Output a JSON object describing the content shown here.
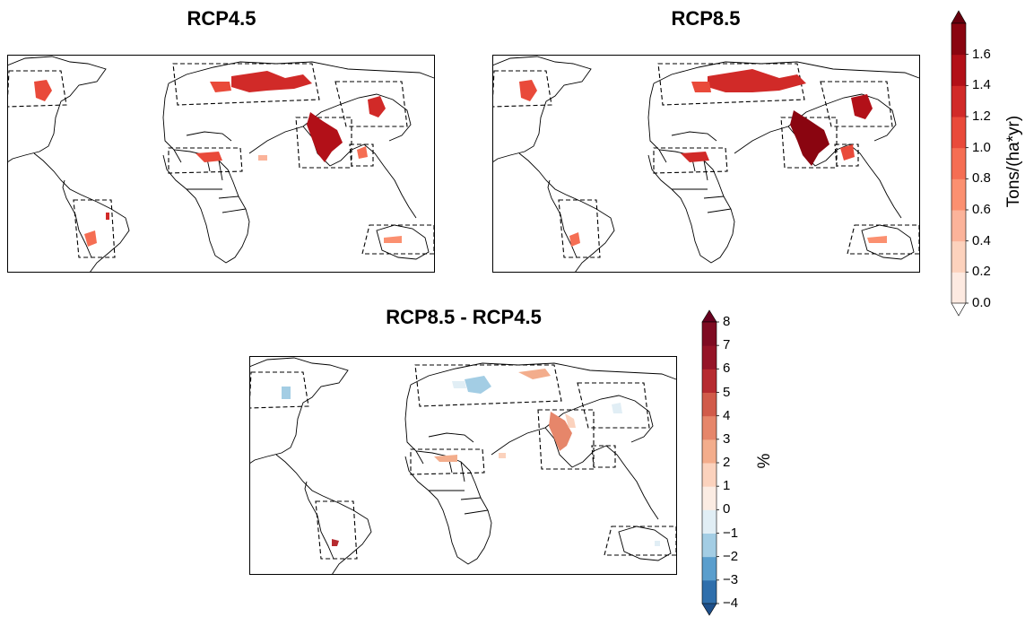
{
  "panels": {
    "rcp45": {
      "title": "RCP4.5"
    },
    "rcp85": {
      "title": "RCP8.5"
    },
    "diff": {
      "title": "RCP8.5 - RCP4.5"
    }
  },
  "colorbar_yield": {
    "label": "Tons/(ha*yr)",
    "ticks": [
      "0.0",
      "0.2",
      "0.4",
      "0.6",
      "0.8",
      "1.0",
      "1.2",
      "1.4",
      "1.6"
    ],
    "colors": [
      "#fdeae1",
      "#fcd2bd",
      "#fbb39a",
      "#fb9070",
      "#f56e53",
      "#e94a3a",
      "#d12a28",
      "#b21018",
      "#8a0510"
    ],
    "extend": "both",
    "extend_low_color": "#ffffff",
    "extend_high_color": "#67000d"
  },
  "colorbar_diff": {
    "label": "%",
    "ticks": [
      "−4",
      "−3",
      "−2",
      "−1",
      "0",
      "1",
      "2",
      "3",
      "4",
      "5",
      "6",
      "7",
      "8"
    ],
    "colors": [
      "#2f6fac",
      "#5a9ecd",
      "#a3cde4",
      "#e1eef5",
      "#fbece3",
      "#fbd2bd",
      "#f3ad8c",
      "#e6866a",
      "#d15b4a",
      "#b62b30",
      "#951427",
      "#7f0b22"
    ],
    "extend": "both",
    "extend_low_color": "#1d4f8a",
    "extend_high_color": "#67001f"
  }
}
